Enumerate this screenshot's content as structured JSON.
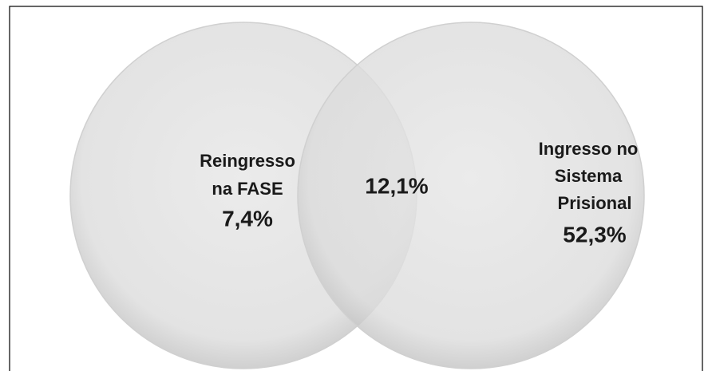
{
  "sets": [
    {
      "label_lines": [
        "Reingresso",
        "na FASE"
      ],
      "value": "7,4%"
    },
    {
      "label_lines": [
        "Ingresso no",
        "Sistema",
        "Prisional"
      ],
      "value": "52,3%"
    }
  ],
  "intersection": {
    "value": "12,1%"
  }
}
